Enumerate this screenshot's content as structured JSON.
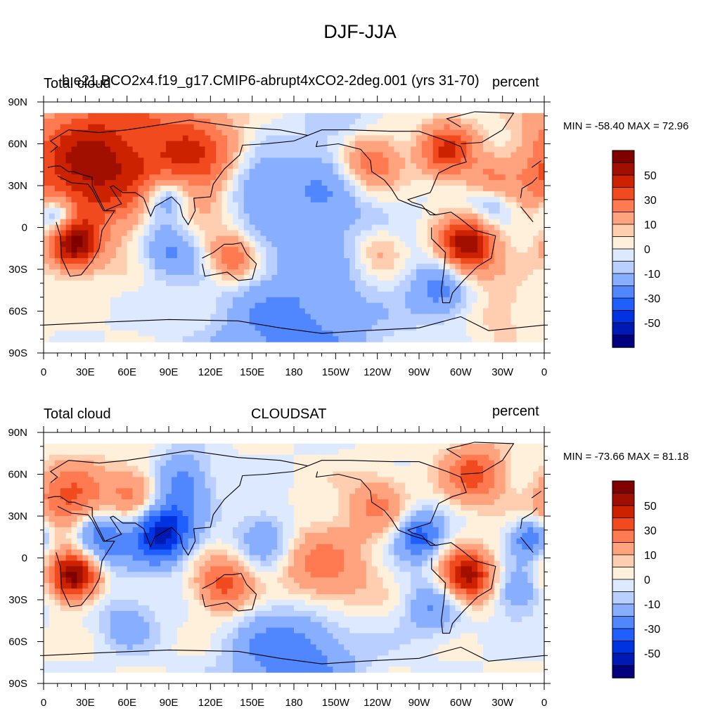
{
  "title": "DJF-JJA",
  "panels": [
    {
      "left_label": "Total cloud",
      "center_label": "b.e21.BCO2x4.f19_g17.CMIP6-abrupt4xCO2-2deg.001 (yrs 31-70)",
      "right_label": "percent",
      "minmax": "MIN = -58.40 MAX =  72.96",
      "hotspots": [
        {
          "lon": 25,
          "lat": 40,
          "v": 35,
          "s": 28
        },
        {
          "lon": 60,
          "lat": 55,
          "v": 30,
          "s": 40
        },
        {
          "lon": 110,
          "lat": 48,
          "v": 28,
          "s": 22
        },
        {
          "lon": 22,
          "lat": -13,
          "v": 55,
          "s": 12
        },
        {
          "lon": 305,
          "lat": -13,
          "v": 60,
          "s": 14
        },
        {
          "lon": 135,
          "lat": -22,
          "v": 30,
          "s": 12
        },
        {
          "lon": 235,
          "lat": 48,
          "v": 35,
          "s": 15
        },
        {
          "lon": 290,
          "lat": 55,
          "v": 40,
          "s": 14
        },
        {
          "lon": 320,
          "lat": 30,
          "v": 30,
          "s": 12
        },
        {
          "lon": 88,
          "lat": 22,
          "v": -35,
          "s": 12
        },
        {
          "lon": 10,
          "lat": 8,
          "v": -35,
          "s": 10
        },
        {
          "lon": 200,
          "lat": 20,
          "v": -18,
          "s": 30
        },
        {
          "lon": 90,
          "lat": -15,
          "v": -25,
          "s": 15
        },
        {
          "lon": 285,
          "lat": -45,
          "v": -25,
          "s": 15
        },
        {
          "lon": 180,
          "lat": -80,
          "v": -25,
          "s": 40
        },
        {
          "lon": 320,
          "lat": 20,
          "v": -30,
          "s": 12
        },
        {
          "lon": 150,
          "lat": 30,
          "v": -20,
          "s": 15
        },
        {
          "lon": 240,
          "lat": -15,
          "v": 15,
          "s": 12
        },
        {
          "lon": 330,
          "lat": -60,
          "v": 10,
          "s": 15
        },
        {
          "lon": 220,
          "lat": 75,
          "v": -8,
          "s": 20
        }
      ]
    },
    {
      "left_label": "Total cloud",
      "center_label": "CLOUDSAT",
      "right_label": "percent",
      "minmax": "MIN = -73.66 MAX =  81.18",
      "hotspots": [
        {
          "lon": 20,
          "lat": 40,
          "v": 35,
          "s": 18
        },
        {
          "lon": 65,
          "lat": 45,
          "v": 25,
          "s": 15
        },
        {
          "lon": 22,
          "lat": -13,
          "v": 65,
          "s": 12
        },
        {
          "lon": 305,
          "lat": -13,
          "v": 55,
          "s": 13
        },
        {
          "lon": 130,
          "lat": -20,
          "v": 35,
          "s": 14
        },
        {
          "lon": 310,
          "lat": 60,
          "v": 35,
          "s": 15
        },
        {
          "lon": 200,
          "lat": -10,
          "v": 25,
          "s": 25
        },
        {
          "lon": 85,
          "lat": 18,
          "v": -55,
          "s": 15
        },
        {
          "lon": 40,
          "lat": 15,
          "v": -35,
          "s": 15
        },
        {
          "lon": 270,
          "lat": 15,
          "v": -35,
          "s": 12
        },
        {
          "lon": 350,
          "lat": 15,
          "v": -30,
          "s": 10
        },
        {
          "lon": 100,
          "lat": 55,
          "v": -25,
          "s": 15
        },
        {
          "lon": 180,
          "lat": -70,
          "v": -30,
          "s": 30
        },
        {
          "lon": 240,
          "lat": 40,
          "v": 20,
          "s": 15
        },
        {
          "lon": 160,
          "lat": 15,
          "v": -20,
          "s": 15
        },
        {
          "lon": 280,
          "lat": -35,
          "v": -20,
          "s": 15
        },
        {
          "lon": 340,
          "lat": -25,
          "v": -20,
          "s": 12
        },
        {
          "lon": 60,
          "lat": -45,
          "v": -15,
          "s": 15
        }
      ]
    }
  ],
  "x_ticks": [
    "0",
    "30E",
    "60E",
    "90E",
    "120E",
    "150E",
    "180",
    "150W",
    "120W",
    "90W",
    "60W",
    "30W",
    "0"
  ],
  "y_ticks": [
    "90N",
    "60N",
    "30N",
    "0",
    "30S",
    "60S",
    "90S"
  ],
  "colorbar": {
    "labels": [
      "50",
      "30",
      "10",
      "0",
      "-10",
      "-30",
      "-50"
    ],
    "levels": [
      -60,
      -50,
      -40,
      -30,
      -20,
      -10,
      -5,
      0,
      5,
      10,
      20,
      30,
      40,
      50,
      60
    ],
    "colors": [
      "#000080",
      "#0019b2",
      "#0033e0",
      "#1f5eff",
      "#5087ff",
      "#88aeff",
      "#b8cfff",
      "#dde9ff",
      "#fff0dc",
      "#ffceb0",
      "#ffa37f",
      "#ff7a50",
      "#f04a1e",
      "#cc2200",
      "#a00f00",
      "#800000"
    ]
  },
  "chart_data": [
    {
      "type": "heatmap",
      "title": "DJF-JJA",
      "variable": "Total cloud",
      "dataset": "b.e21.BCO2x4.f19_g17.CMIP6-abrupt4xCO2-2deg.001 (yrs 31-70)",
      "units": "percent",
      "min": -58.4,
      "max": 72.96,
      "xlim": [
        0,
        360
      ],
      "ylim": [
        -90,
        90
      ],
      "contour_levels": [
        -60,
        -50,
        -40,
        -30,
        -20,
        -10,
        -5,
        0,
        5,
        10,
        20,
        30,
        40,
        50,
        60
      ]
    },
    {
      "type": "heatmap",
      "title": "DJF-JJA",
      "variable": "Total cloud",
      "dataset": "CLOUDSAT",
      "units": "percent",
      "min": -73.66,
      "max": 81.18,
      "xlim": [
        0,
        360
      ],
      "ylim": [
        -90,
        90
      ],
      "contour_levels": [
        -60,
        -50,
        -40,
        -30,
        -20,
        -10,
        -5,
        0,
        5,
        10,
        20,
        30,
        40,
        50,
        60
      ]
    }
  ]
}
